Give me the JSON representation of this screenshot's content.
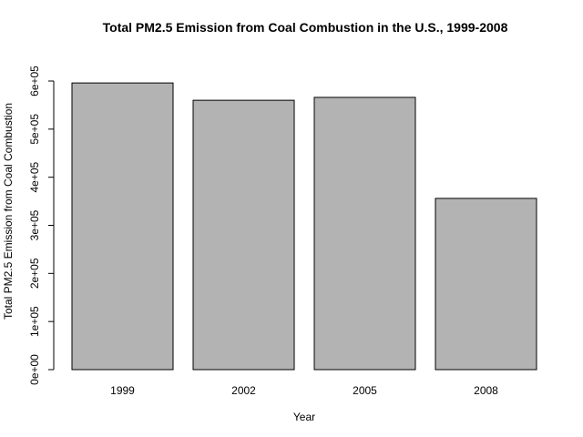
{
  "chart_data": {
    "type": "bar",
    "title": "Total PM2.5 Emission from Coal Combustion in the U.S., 1999-2008",
    "xlabel": "Year",
    "ylabel": "Total PM2.5 Emission from Coal Combustion",
    "categories": [
      "1999",
      "2002",
      "2005",
      "2008"
    ],
    "values": [
      596000,
      560000,
      566000,
      356000
    ],
    "ylim": [
      0,
      600000
    ],
    "yticks": [
      0,
      100000,
      200000,
      300000,
      400000,
      500000,
      600000
    ],
    "ytick_labels": [
      "0e+00",
      "1e+05",
      "2e+05",
      "3e+05",
      "4e+05",
      "5e+05",
      "6e+05"
    ],
    "bar_color": "#b3b3b3",
    "grid": false,
    "legend": "none"
  }
}
